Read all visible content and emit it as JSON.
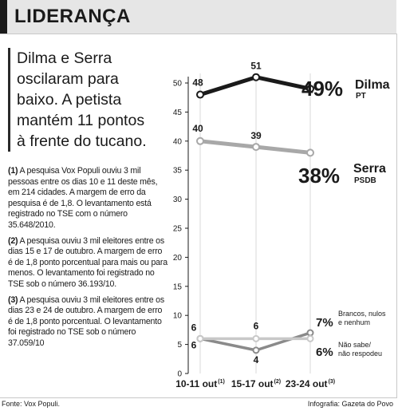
{
  "header": {
    "title": "LIDERANÇA"
  },
  "lead": "Dilma e Serra oscilaram para baixo. A petista mantém 11 pontos à frente do tucano.",
  "notes": [
    {
      "marker": "(1)",
      "text": "A pesquisa Vox Populi ouviu 3 mil pessoas entre os dias 10 e 11 deste mês, em 214 cidades. A margem de erro da pesquisa é de 1,8. O levantamento está registrado no TSE com o número 35.648/2010."
    },
    {
      "marker": "(2)",
      "text": "A pesquisa ouviu 3 mil eleitores entre os dias 15 e 17 de outubro. A margem de erro é de 1,8 ponto porcentual para mais ou para menos. O levantamento foi registrado no TSE sob o número 36.193/10."
    },
    {
      "marker": "(3)",
      "text": "A pesquisa ouviu 3 mil eleitores entre os dias 23 e 24 de outubro. A margem de erro é de 1,8 ponto porcentual. O levantamento foi registrado no TSE sob o número 37.059/10"
    }
  ],
  "footer": {
    "source": "Fonte: Vox Populi.",
    "credit": "Infografia: Gazeta do Povo"
  },
  "chart_data": {
    "type": "line",
    "categories": [
      "10-11 out",
      "15-17 out",
      "23-24 out"
    ],
    "category_notes": [
      "(1)",
      "(2)",
      "(3)"
    ],
    "ylim": [
      0,
      52
    ],
    "yticks": [
      0,
      5,
      10,
      15,
      20,
      25,
      30,
      35,
      40,
      45,
      50
    ],
    "grid": false,
    "series": [
      {
        "name": "Dilma",
        "party": "PT",
        "values": [
          48,
          51,
          49
        ],
        "point_labels": [
          "48",
          "51",
          ""
        ],
        "end_label": "49%",
        "color": "#1a1a1a"
      },
      {
        "name": "Serra",
        "party": "PSDB",
        "values": [
          40,
          39,
          38
        ],
        "point_labels": [
          "40",
          "39",
          ""
        ],
        "end_label": "38%",
        "color": "#a8a8a8"
      },
      {
        "name": "Brancos, nulos e nenhum",
        "values": [
          6,
          4,
          7
        ],
        "point_labels": [
          "6",
          "4",
          ""
        ],
        "end_label": "7%",
        "color": "#8a8a8a"
      },
      {
        "name": "Não sabe/ não respodeu",
        "values": [
          6,
          6,
          6
        ],
        "point_labels": [
          "6",
          "6",
          ""
        ],
        "end_label": "6%",
        "color": "#c8c8c8"
      }
    ]
  }
}
